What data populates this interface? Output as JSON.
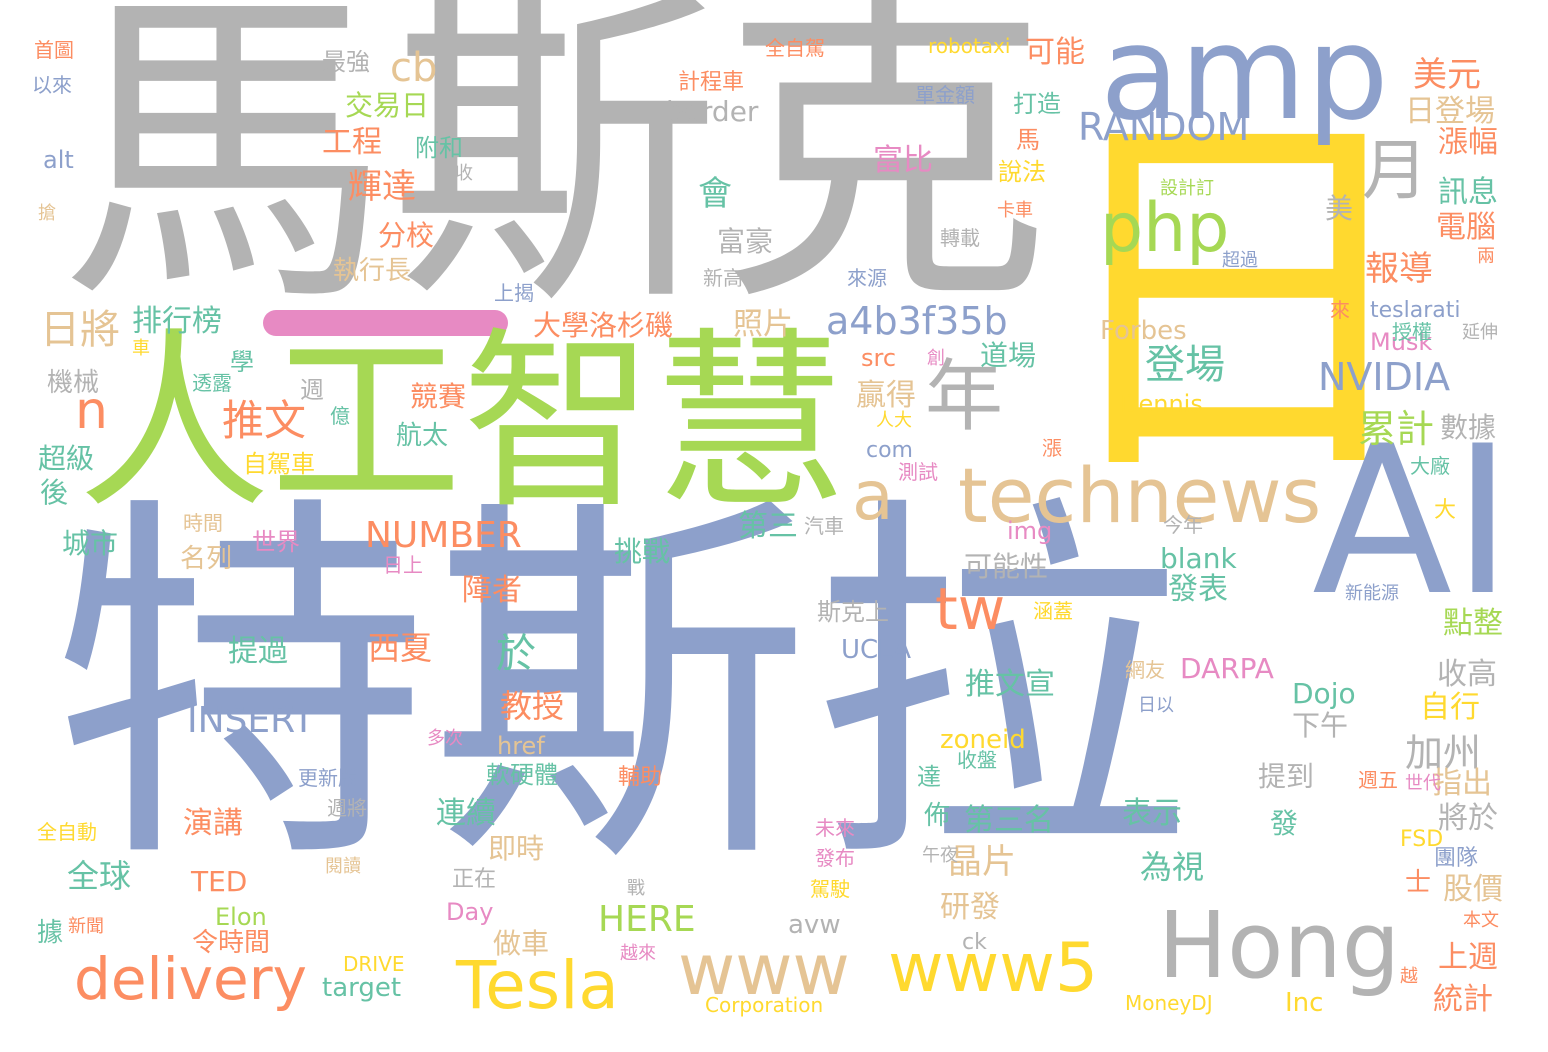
{
  "words": [
    {
      "name": "word-mask-zh",
      "id": "w-mask",
      "text": "馬斯克",
      "color": "#b3b3b3"
    },
    {
      "name": "word-tesla-zh",
      "id": "w-tesla-zh",
      "text": "特斯拉",
      "color": "#8da0cb"
    },
    {
      "name": "word-ai-zh",
      "id": "w-ai-zh",
      "text": "人工智慧",
      "color": "#a6d854"
    },
    {
      "name": "word-ri",
      "id": "w-ri",
      "text": "日",
      "color": "#ffd92f"
    },
    {
      "name": "word-amp",
      "id": "w-amp",
      "text": "amp",
      "color": "#8da0cb"
    },
    {
      "name": "word-ai-en",
      "id": "w-ai-en",
      "text": "AI",
      "color": "#8da0cb"
    },
    {
      "name": "word-hong",
      "id": "w-hong",
      "text": "Hong",
      "color": "#b3b3b3"
    },
    {
      "name": "word-technews",
      "id": "w-technews",
      "text": "technews",
      "color": "#e5c494"
    },
    {
      "name": "word-year",
      "id": "w-year",
      "text": "年",
      "color": "#b3b3b3"
    },
    {
      "name": "word-a",
      "id": "w-a",
      "text": "a",
      "color": "#e5c494"
    },
    {
      "name": "word-month",
      "id": "w-month",
      "text": "月",
      "color": "#b3b3b3"
    },
    {
      "name": "word-php",
      "id": "w-php",
      "text": "php",
      "color": "#a6d854"
    },
    {
      "name": "word-www",
      "id": "w-www",
      "text": "www",
      "color": "#e5c494"
    },
    {
      "name": "word-www5",
      "id": "w-www5",
      "text": "www5",
      "color": "#ffd92f"
    },
    {
      "name": "word-tesla-en",
      "id": "w-tesla-en",
      "text": "Tesla",
      "color": "#ffd92f"
    },
    {
      "name": "word-delivery",
      "id": "w-delivery",
      "text": "delivery",
      "color": "#fc8d62"
    },
    {
      "name": "word-tw",
      "id": "w-tw",
      "text": "tw",
      "color": "#fc8d62"
    },
    {
      "name": "word-n",
      "id": "w-n",
      "text": "n",
      "color": "#fc8d62"
    },
    {
      "name": "word-cb",
      "id": "w-cb",
      "text": "cb",
      "color": "#e5c494"
    },
    {
      "name": "word-random",
      "id": "w-random",
      "text": "RANDOM",
      "color": "#8da0cb"
    },
    {
      "name": "word-a4b3f35b",
      "id": "w-a4b",
      "text": "a4b3f35b",
      "color": "#8da0cb"
    },
    {
      "name": "word-nvidia",
      "id": "w-nvidia",
      "text": "NVIDIA",
      "color": "#8da0cb"
    },
    {
      "name": "word-insert",
      "id": "w-insert",
      "text": "INSERT",
      "color": "#8da0cb"
    },
    {
      "name": "word-number",
      "id": "w-number",
      "text": "NUMBER",
      "color": "#fc8d62"
    },
    {
      "name": "word-here",
      "id": "w-here",
      "text": "HERE",
      "color": "#a6d854"
    },
    {
      "name": "word-meiyuan",
      "text": "美元",
      "color": "#fc8d62"
    },
    {
      "name": "word-keneng",
      "text": "可能",
      "color": "#fc8d62"
    },
    {
      "name": "word-zuiqiang",
      "text": "最強",
      "color": "#b3b3b3"
    },
    {
      "name": "word-jiaoyiri",
      "text": "交易日",
      "color": "#a6d854"
    },
    {
      "name": "word-border",
      "text": "border",
      "color": "#b3b3b3"
    },
    {
      "name": "word-gongcheng",
      "text": "工程",
      "color": "#fc8d62"
    },
    {
      "name": "word-fuhe",
      "text": "附和",
      "color": "#66c2a5"
    },
    {
      "name": "word-huida",
      "text": "輝達",
      "color": "#fc8d62"
    },
    {
      "name": "word-fenxiao",
      "text": "分校",
      "color": "#fc8d62"
    },
    {
      "name": "word-zhixingzhang",
      "text": "執行長",
      "color": "#e5c494"
    },
    {
      "name": "word-rijiang",
      "text": "日將",
      "color": "#e5c494"
    },
    {
      "name": "word-paihangbang",
      "text": "排行榜",
      "color": "#66c2a5"
    },
    {
      "name": "word-daxue",
      "text": "大學洛杉磯",
      "color": "#fc8d62"
    },
    {
      "name": "word-zhaopian",
      "text": "照片",
      "color": "#e5c494"
    },
    {
      "name": "word-fuhao",
      "text": "富豪",
      "color": "#b3b3b3"
    },
    {
      "name": "word-fubi",
      "text": "富比",
      "color": "#e78ac3"
    },
    {
      "name": "word-baodao",
      "text": "報導",
      "color": "#fc8d62"
    },
    {
      "name": "word-dengchang",
      "text": "登場",
      "color": "#66c2a5"
    },
    {
      "name": "word-forbes",
      "text": "Forbes",
      "color": "#e5c494"
    },
    {
      "name": "word-dennis",
      "text": "Dennis",
      "color": "#ffd92f"
    },
    {
      "name": "word-leiji",
      "text": "累計",
      "color": "#a6d854"
    },
    {
      "name": "word-teslarati",
      "text": "teslarati",
      "color": "#8da0cb"
    },
    {
      "name": "word-musk",
      "text": "Musk",
      "color": "#e78ac3"
    },
    {
      "name": "word-tuiwen",
      "text": "推文",
      "color": "#fc8d62"
    },
    {
      "name": "word-zijiache",
      "text": "自駕車",
      "color": "#ffd92f"
    },
    {
      "name": "word-hangtai",
      "text": "航太",
      "color": "#66c2a5"
    },
    {
      "name": "word-jingsai",
      "text": "競賽",
      "color": "#fc8d62"
    },
    {
      "name": "word-yingde",
      "text": "贏得",
      "color": "#e5c494"
    },
    {
      "name": "word-com",
      "text": "com",
      "color": "#8da0cb"
    },
    {
      "name": "word-src",
      "text": "src",
      "color": "#fc8d62"
    },
    {
      "name": "word-daochang",
      "text": "道場",
      "color": "#66c2a5"
    },
    {
      "name": "word-jixie",
      "text": "機械",
      "color": "#b3b3b3"
    },
    {
      "name": "word-chaoji",
      "text": "超級",
      "color": "#66c2a5"
    },
    {
      "name": "word-chengshi",
      "text": "城市",
      "color": "#66c2a5"
    },
    {
      "name": "word-alt",
      "text": "alt",
      "color": "#8da0cb"
    },
    {
      "name": "word-minglie",
      "text": "名列",
      "color": "#e5c494"
    },
    {
      "name": "word-shijie",
      "text": "世界",
      "color": "#e78ac3"
    },
    {
      "name": "word-tiaozhan",
      "text": "挑戰",
      "color": "#66c2a5"
    },
    {
      "name": "word-disan",
      "text": "第三",
      "color": "#66c2a5"
    },
    {
      "name": "word-qiche",
      "text": "汽車",
      "color": "#b3b3b3"
    },
    {
      "name": "word-img",
      "text": "img",
      "color": "#e78ac3"
    },
    {
      "name": "word-kenengxing",
      "text": "可能性",
      "color": "#b3b3b3"
    },
    {
      "name": "word-blank",
      "text": "blank",
      "color": "#66c2a5"
    },
    {
      "name": "word-fabiao",
      "text": "發表",
      "color": "#66c2a5"
    },
    {
      "name": "word-zhangaizhe",
      "text": "障者",
      "color": "#fc8d62"
    },
    {
      "name": "word-xixia",
      "text": "西夏",
      "color": "#fc8d62"
    },
    {
      "name": "word-tiguo",
      "text": "提過",
      "color": "#66c2a5"
    },
    {
      "name": "word-ucla",
      "text": "UCLA",
      "color": "#8da0cb"
    },
    {
      "name": "word-jiaoshou",
      "text": "教授",
      "color": "#fc8d62"
    },
    {
      "name": "word-href",
      "text": "href",
      "color": "#e5c494"
    },
    {
      "name": "word-ruanyingti",
      "text": "軟硬體",
      "color": "#66c2a5"
    },
    {
      "name": "word-jiazhou",
      "text": "加州",
      "color": "#b3b3b3"
    },
    {
      "name": "word-xiawu",
      "text": "下午",
      "color": "#b3b3b3"
    },
    {
      "name": "word-zhixing",
      "text": "自行",
      "color": "#ffd92f"
    },
    {
      "name": "word-zhichu",
      "text": "指出",
      "color": "#e5c494"
    },
    {
      "name": "word-jiangyu",
      "text": "將於",
      "color": "#b3b3b3"
    },
    {
      "name": "word-tuiwenxuan",
      "text": "推文宣",
      "color": "#66c2a5"
    },
    {
      "name": "word-darpa",
      "text": "DARPA",
      "color": "#e78ac3"
    },
    {
      "name": "word-dojo",
      "text": "Dojo",
      "color": "#66c2a5"
    },
    {
      "name": "word-zoneid",
      "text": "zoneid",
      "color": "#ffd92f"
    },
    {
      "name": "word-yanjiang",
      "text": "演講",
      "color": "#fc8d62"
    },
    {
      "name": "word-quanqiu",
      "text": "全球",
      "color": "#66c2a5"
    },
    {
      "name": "word-ted",
      "text": "TED",
      "color": "#fc8d62"
    },
    {
      "name": "word-elon",
      "text": "Elon",
      "color": "#a6d854"
    },
    {
      "name": "word-lingshijian",
      "text": "令時間",
      "color": "#fc8d62"
    },
    {
      "name": "word-lianxu",
      "text": "連續",
      "color": "#66c2a5"
    },
    {
      "name": "word-jishi",
      "text": "即時",
      "color": "#e5c494"
    },
    {
      "name": "word-disanming",
      "text": "第三名",
      "color": "#66c2a5"
    },
    {
      "name": "word-jingpian",
      "text": "晶片",
      "color": "#e5c494"
    },
    {
      "name": "word-biaoshi",
      "text": "表示",
      "color": "#66c2a5"
    },
    {
      "name": "word-fa",
      "text": "發",
      "color": "#66c2a5"
    },
    {
      "name": "word-weishi",
      "text": "為視",
      "color": "#66c2a5"
    },
    {
      "name": "word-yanfa",
      "text": "研發",
      "color": "#e5c494"
    },
    {
      "name": "word-zuoche",
      "text": "做車",
      "color": "#e5c494"
    },
    {
      "name": "word-avw",
      "text": "avw",
      "color": "#b3b3b3"
    },
    {
      "name": "word-day",
      "text": "Day",
      "color": "#e78ac3"
    },
    {
      "name": "word-target",
      "text": "target",
      "color": "#66c2a5"
    },
    {
      "name": "word-ck",
      "text": "ck",
      "color": "#b3b3b3"
    },
    {
      "name": "word-inc",
      "text": "Inc",
      "color": "#ffd92f"
    },
    {
      "name": "word-moneydj",
      "text": "MoneyDJ",
      "color": "#ffd92f"
    },
    {
      "name": "word-corporation",
      "text": "Corporation",
      "color": "#ffd92f"
    },
    {
      "name": "word-drive",
      "text": "DRIVE",
      "color": "#ffd92f"
    },
    {
      "name": "word-fsd",
      "text": "FSD",
      "color": "#ffd92f"
    },
    {
      "name": "word-tongji",
      "text": "統計",
      "color": "#fc8d62"
    },
    {
      "name": "word-shangzhou",
      "text": "上週",
      "color": "#fc8d62"
    },
    {
      "name": "word-gujia",
      "text": "股價",
      "color": "#e5c494"
    },
    {
      "name": "word-tuandui",
      "text": "團隊",
      "color": "#8da0cb"
    },
    {
      "name": "word-dianzheng",
      "text": "點整",
      "color": "#a6d854"
    },
    {
      "name": "word-shougao",
      "text": "收高",
      "color": "#b3b3b3"
    },
    {
      "name": "word-tidao",
      "text": "提到",
      "color": "#b3b3b3"
    },
    {
      "name": "word-shuju",
      "text": "數據",
      "color": "#b3b3b3"
    },
    {
      "name": "word-zhangfu",
      "text": "漲幅",
      "color": "#fc8d62"
    },
    {
      "name": "word-xunxi",
      "text": "訊息",
      "color": "#66c2a5"
    },
    {
      "name": "word-diannao",
      "text": "電腦",
      "color": "#fc8d62"
    },
    {
      "name": "word-ridengchang",
      "text": "日登場",
      "color": "#e5c494"
    },
    {
      "name": "word-mei",
      "text": "美",
      "color": "#b3b3b3"
    },
    {
      "name": "word-liang",
      "text": "兩",
      "color": "#fc8d62"
    },
    {
      "name": "word-yanshen",
      "text": "延伸",
      "color": "#b3b3b3"
    },
    {
      "name": "word-shouquan",
      "text": "授權",
      "color": "#66c2a5"
    },
    {
      "name": "word-lai",
      "text": "來",
      "color": "#fc8d62"
    },
    {
      "name": "word-hui",
      "text": "會",
      "color": "#66c2a5"
    },
    {
      "name": "word-robotaxi",
      "text": "robotaxi",
      "color": "#ffd92f"
    },
    {
      "name": "word-quanzijia",
      "text": "全自駕",
      "color": "#fc8d62"
    },
    {
      "name": "word-jichengche",
      "text": "計程車",
      "color": "#fc8d62"
    },
    {
      "name": "word-danjine",
      "text": "單金額",
      "color": "#8da0cb"
    },
    {
      "name": "word-dazao",
      "text": "打造",
      "color": "#66c2a5"
    },
    {
      "name": "word-ma",
      "text": "馬",
      "color": "#fc8d62"
    },
    {
      "name": "word-shuofa",
      "text": "說法",
      "color": "#ffd92f"
    },
    {
      "name": "word-kache",
      "text": "卡車",
      "color": "#fc8d62"
    },
    {
      "name": "word-shejiding",
      "text": "設計訂",
      "color": "#a6d854"
    },
    {
      "name": "word-chaoguo",
      "text": "超過",
      "color": "#8da0cb"
    },
    {
      "name": "word-zhuanzai",
      "text": "轉載",
      "color": "#b3b3b3"
    },
    {
      "name": "word-xingao",
      "text": "新高",
      "color": "#b3b3b3"
    },
    {
      "name": "word-laiyuan",
      "text": "來源",
      "color": "#8da0cb"
    },
    {
      "name": "word-shangjie",
      "text": "上揭",
      "color": "#8da0cb"
    },
    {
      "name": "word-shoutu",
      "text": "首圖",
      "color": "#fc8d62"
    },
    {
      "name": "word-yilai",
      "text": "以來",
      "color": "#8da0cb"
    },
    {
      "name": "word-qiang",
      "text": "搶",
      "color": "#e5c494"
    },
    {
      "name": "word-shou",
      "text": "收",
      "color": "#b3b3b3"
    },
    {
      "name": "word-che",
      "text": "車",
      "color": "#ffd92f"
    },
    {
      "name": "word-toulu",
      "text": "透露",
      "color": "#66c2a5"
    },
    {
      "name": "word-xue",
      "text": "學",
      "color": "#66c2a5"
    },
    {
      "name": "word-zhou",
      "text": "週",
      "color": "#b3b3b3"
    },
    {
      "name": "word-yi",
      "text": "億",
      "color": "#66c2a5"
    },
    {
      "name": "word-hou",
      "text": "後",
      "color": "#66c2a5"
    },
    {
      "name": "word-shijian",
      "text": "時間",
      "color": "#e5c494"
    },
    {
      "name": "word-rishang",
      "text": "日上",
      "color": "#e78ac3"
    },
    {
      "name": "word-chuang",
      "text": "創",
      "color": "#e78ac3"
    },
    {
      "name": "word-renda",
      "text": "人大",
      "color": "#ffd92f"
    },
    {
      "name": "word-zhang",
      "text": "漲",
      "color": "#fc8d62"
    },
    {
      "name": "word-ceshi",
      "text": "測試",
      "color": "#e78ac3"
    },
    {
      "name": "word-jinnian",
      "text": "今年",
      "color": "#b3b3b3"
    },
    {
      "name": "word-da",
      "text": "大",
      "color": "#ffd92f"
    },
    {
      "name": "word-dachang",
      "text": "大廠",
      "color": "#66c2a5"
    },
    {
      "name": "word-sikeshang",
      "text": "斯克上",
      "color": "#b3b3b3"
    },
    {
      "name": "word-hangai",
      "text": "涵蓋",
      "color": "#ffd92f"
    },
    {
      "name": "word-wangyou",
      "text": "網友",
      "color": "#e5c494"
    },
    {
      "name": "word-riyi",
      "text": "日以",
      "color": "#8da0cb"
    },
    {
      "name": "word-xinnengyuan",
      "text": "新能源",
      "color": "#8da0cb"
    },
    {
      "name": "word-duoci",
      "text": "多次",
      "color": "#e78ac3"
    },
    {
      "name": "word-fuzhu",
      "text": "輔助",
      "color": "#fc8d62"
    },
    {
      "name": "word-shoupan",
      "text": "收盤",
      "color": "#66c2a5"
    },
    {
      "name": "word-da2",
      "text": "達",
      "color": "#66c2a5"
    },
    {
      "name": "word-bu",
      "text": "佈",
      "color": "#66c2a5"
    },
    {
      "name": "word-zhouwu",
      "text": "週五",
      "color": "#fc8d62"
    },
    {
      "name": "word-shidai",
      "text": "世代",
      "color": "#e78ac3"
    },
    {
      "name": "word-gengxinban",
      "text": "更新版",
      "color": "#8da0cb"
    },
    {
      "name": "word-zhoujiang",
      "text": "週將",
      "color": "#b3b3b3"
    },
    {
      "name": "word-weilai",
      "text": "未來",
      "color": "#e78ac3"
    },
    {
      "name": "word-fabu",
      "text": "發布",
      "color": "#e78ac3"
    },
    {
      "name": "word-wuye",
      "text": "午夜",
      "color": "#b3b3b3"
    },
    {
      "name": "word-quanzidong",
      "text": "全自動",
      "color": "#ffd92f"
    },
    {
      "name": "word-yuedu",
      "text": "閱讀",
      "color": "#e5c494"
    },
    {
      "name": "word-zhengzai",
      "text": "正在",
      "color": "#b3b3b3"
    },
    {
      "name": "word-zhan",
      "text": "戰",
      "color": "#b3b3b3"
    },
    {
      "name": "word-jiashi",
      "text": "駕駛",
      "color": "#ffd92f"
    },
    {
      "name": "word-shi",
      "text": "士",
      "color": "#fc8d62"
    },
    {
      "name": "word-benwen",
      "text": "本文",
      "color": "#fc8d62"
    },
    {
      "name": "word-ju",
      "text": "據",
      "color": "#66c2a5"
    },
    {
      "name": "word-xinwen",
      "text": "新聞",
      "color": "#fc8d62"
    },
    {
      "name": "word-yuelai",
      "text": "越來",
      "color": "#e78ac3"
    },
    {
      "name": "word-yue",
      "text": "越",
      "color": "#fc8d62"
    },
    {
      "name": "word-yu",
      "text": "於",
      "color": "#66c2a5"
    }
  ]
}
